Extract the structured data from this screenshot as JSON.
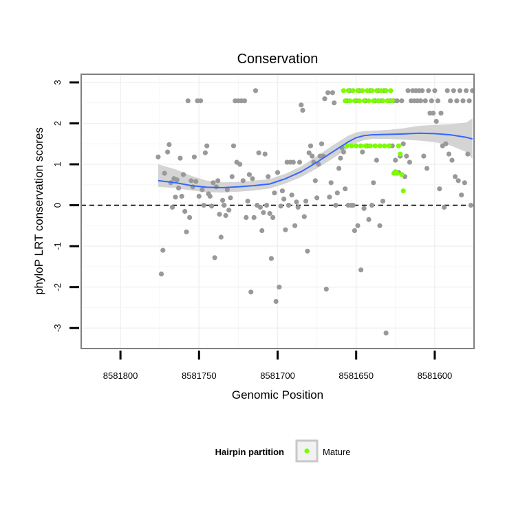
{
  "chart_data": {
    "type": "scatter",
    "title": "Conservation",
    "xlabel": "Genomic Position",
    "ylabel": "phyloP LRT conservation scores",
    "x_reversed": true,
    "xlim": [
      8581825,
      8581575
    ],
    "ylim": [
      -3.5,
      3.2
    ],
    "x_ticks": [
      8581800,
      8581750,
      8581700,
      8581650,
      8581600
    ],
    "x_tick_labels": [
      "8581800",
      "8581750",
      "8581700",
      "8581650",
      "8581600"
    ],
    "y_ticks": [
      -3,
      -2,
      -1,
      0,
      1,
      2,
      3
    ],
    "y_tick_labels": [
      "-3",
      "-2",
      "-1",
      "0",
      "1",
      "2",
      "3"
    ],
    "reference_line": {
      "y": 0,
      "style": "dashed"
    },
    "grid": true,
    "legend": {
      "title": "Hairpin partition",
      "position": "bottom",
      "entries": [
        {
          "label": "Mature",
          "color": "#7CFC00"
        }
      ]
    },
    "colors": {
      "points": "#999999",
      "mature": "#7CFC00",
      "smooth": "#3366FF",
      "band": "#cccccc"
    },
    "series": [
      {
        "name": "",
        "points": [
          [
            8581776,
            1.18
          ],
          [
            8581774,
            -1.68
          ],
          [
            8581773,
            -1.1
          ],
          [
            8581772,
            0.78
          ],
          [
            8581770,
            1.3
          ],
          [
            8581769,
            1.48
          ],
          [
            8581768,
            0.55
          ],
          [
            8581767,
            -0.05
          ],
          [
            8581766,
            0.65
          ],
          [
            8581765,
            0.2
          ],
          [
            8581764,
            0.62
          ],
          [
            8581763,
            0.42
          ],
          [
            8581762,
            1.15
          ],
          [
            8581761,
            0.22
          ],
          [
            8581760,
            0.75
          ],
          [
            8581759,
            -0.15
          ],
          [
            8581758,
            -0.65
          ],
          [
            8581757,
            2.55
          ],
          [
            8581756,
            -0.3
          ],
          [
            8581755,
            0.6
          ],
          [
            8581754,
            0.45
          ],
          [
            8581753,
            1.18
          ],
          [
            8581752,
            0.58
          ],
          [
            8581751,
            2.55
          ],
          [
            8581750,
            0.22
          ],
          [
            8581749,
            2.55
          ],
          [
            8581748,
            0.38
          ],
          [
            8581747,
            0.0
          ],
          [
            8581746,
            1.28
          ],
          [
            8581745,
            1.45
          ],
          [
            8581744,
            0.28
          ],
          [
            8581743,
            0.22
          ],
          [
            8581742,
            -0.02
          ],
          [
            8581741,
            0.55
          ],
          [
            8581740,
            -1.28
          ],
          [
            8581739,
            0.45
          ],
          [
            8581738,
            0.6
          ],
          [
            8581737,
            -0.22
          ],
          [
            8581736,
            -0.78
          ],
          [
            8581735,
            0.12
          ],
          [
            8581734,
            0.0
          ],
          [
            8581733,
            -0.25
          ],
          [
            8581732,
            0.38
          ],
          [
            8581731,
            -0.12
          ],
          [
            8581730,
            0.18
          ],
          [
            8581729,
            0.7
          ],
          [
            8581728,
            1.45
          ],
          [
            8581727,
            2.55
          ],
          [
            8581726,
            1.05
          ],
          [
            8581725,
            2.55
          ],
          [
            8581724,
            1.0
          ],
          [
            8581723,
            2.55
          ],
          [
            8581722,
            0.6
          ],
          [
            8581721,
            2.55
          ],
          [
            8581720,
            -0.3
          ],
          [
            8581719,
            0.1
          ],
          [
            8581718,
            0.75
          ],
          [
            8581717,
            -2.12
          ],
          [
            8581716,
            0.65
          ],
          [
            8581715,
            -0.3
          ],
          [
            8581714,
            2.8
          ],
          [
            8581713,
            0.0
          ],
          [
            8581712,
            1.28
          ],
          [
            8581711,
            -0.05
          ],
          [
            8581710,
            -0.62
          ],
          [
            8581709,
            -0.18
          ],
          [
            8581708,
            1.25
          ],
          [
            8581707,
            0.0
          ],
          [
            8581706,
            0.7
          ],
          [
            8581705,
            -0.2
          ],
          [
            8581704,
            -1.3
          ],
          [
            8581703,
            -0.3
          ],
          [
            8581702,
            0.3
          ],
          [
            8581701,
            -2.35
          ],
          [
            8581700,
            0.8
          ],
          [
            8581699,
            -2.0
          ],
          [
            8581698,
            -0.02
          ],
          [
            8581697,
            0.35
          ],
          [
            8581696,
            0.15
          ],
          [
            8581695,
            -0.6
          ],
          [
            8581694,
            1.05
          ],
          [
            8581693,
            0.0
          ],
          [
            8581692,
            1.05
          ],
          [
            8581691,
            0.25
          ],
          [
            8581690,
            1.05
          ],
          [
            8581689,
            -0.5
          ],
          [
            8581688,
            0.08
          ],
          [
            8581687,
            -0.05
          ],
          [
            8581686,
            1.05
          ],
          [
            8581685,
            2.45
          ],
          [
            8581684,
            2.32
          ],
          [
            8581683,
            -0.28
          ],
          [
            8581682,
            0.1
          ],
          [
            8581681,
            -1.12
          ],
          [
            8581680,
            1.28
          ],
          [
            8581679,
            1.45
          ],
          [
            8581678,
            1.2
          ],
          [
            8581677,
            1.05
          ],
          [
            8581676,
            0.6
          ],
          [
            8581675,
            0.18
          ],
          [
            8581674,
            1.0
          ],
          [
            8581673,
            1.2
          ],
          [
            8581672,
            1.5
          ],
          [
            8581671,
            1.2
          ],
          [
            8581670,
            2.6
          ],
          [
            8581669,
            -2.05
          ],
          [
            8581668,
            2.75
          ],
          [
            8581667,
            0.2
          ],
          [
            8581666,
            0.55
          ],
          [
            8581665,
            2.75
          ],
          [
            8581664,
            2.5
          ],
          [
            8581663,
            0.0
          ],
          [
            8581662,
            0.3
          ],
          [
            8581661,
            0.9
          ],
          [
            8581660,
            1.15
          ],
          [
            8581659,
            1.4
          ],
          [
            8581658,
            1.3
          ],
          [
            8581657,
            0.4
          ],
          [
            8581656,
            2.55
          ],
          [
            8581655,
            0.0
          ],
          [
            8581654,
            2.8
          ],
          [
            8581653,
            0.0
          ],
          [
            8581652,
            0.0
          ],
          [
            8581651,
            -0.62
          ],
          [
            8581650,
            2.55
          ],
          [
            8581649,
            -0.5
          ],
          [
            8581648,
            2.8
          ],
          [
            8581647,
            -1.58
          ],
          [
            8581646,
            1.3
          ],
          [
            8581645,
            -0.08
          ],
          [
            8581644,
            2.55
          ],
          [
            8581643,
            1.45
          ],
          [
            8581642,
            -0.35
          ],
          [
            8581641,
            2.8
          ],
          [
            8581640,
            0.0
          ],
          [
            8581639,
            0.55
          ],
          [
            8581638,
            2.55
          ],
          [
            8581637,
            1.1
          ],
          [
            8581636,
            2.8
          ],
          [
            8581635,
            -0.5
          ],
          [
            8581634,
            2.55
          ],
          [
            8581633,
            0.1
          ],
          [
            8581632,
            2.8
          ],
          [
            8581631,
            -3.12
          ],
          [
            8581630,
            2.55
          ],
          [
            8581629,
            1.45
          ],
          [
            8581628,
            2.55
          ],
          [
            8581627,
            1.45
          ],
          [
            8581626,
            2.55
          ],
          [
            8581625,
            1.1
          ],
          [
            8581624,
            2.55
          ],
          [
            8581623,
            0.8
          ],
          [
            8581622,
            1.2
          ],
          [
            8581621,
            2.55
          ],
          [
            8581620,
            1.5
          ],
          [
            8581619,
            0.7
          ],
          [
            8581618,
            1.2
          ],
          [
            8581617,
            2.8
          ],
          [
            8581616,
            1.05
          ],
          [
            8581615,
            2.55
          ],
          [
            8581614,
            2.8
          ],
          [
            8581613,
            2.55
          ],
          [
            8581612,
            2.8
          ],
          [
            8581611,
            2.55
          ],
          [
            8581610,
            2.8
          ],
          [
            8581609,
            2.55
          ],
          [
            8581608,
            2.8
          ],
          [
            8581607,
            1.2
          ],
          [
            8581606,
            2.55
          ],
          [
            8581605,
            0.9
          ],
          [
            8581604,
            2.8
          ],
          [
            8581603,
            2.25
          ],
          [
            8581602,
            2.55
          ],
          [
            8581601,
            2.25
          ],
          [
            8581600,
            2.8
          ],
          [
            8581599,
            2.05
          ],
          [
            8581598,
            2.55
          ],
          [
            8581597,
            0.4
          ],
          [
            8581596,
            2.25
          ],
          [
            8581595,
            1.45
          ],
          [
            8581594,
            -0.05
          ],
          [
            8581593,
            1.5
          ],
          [
            8581592,
            2.8
          ],
          [
            8581591,
            1.25
          ],
          [
            8581590,
            2.55
          ],
          [
            8581589,
            1.1
          ],
          [
            8581588,
            2.8
          ],
          [
            8581587,
            0.7
          ],
          [
            8581586,
            2.55
          ],
          [
            8581585,
            0.6
          ],
          [
            8581584,
            2.8
          ],
          [
            8581583,
            0.25
          ],
          [
            8581582,
            2.55
          ],
          [
            8581581,
            0.55
          ],
          [
            8581580,
            2.8
          ],
          [
            8581579,
            1.25
          ],
          [
            8581578,
            2.55
          ],
          [
            8581577,
            0.0
          ],
          [
            8581576,
            2.8
          ]
        ]
      },
      {
        "name": "Mature",
        "points": [
          [
            8581658,
            2.8
          ],
          [
            8581657,
            2.55
          ],
          [
            8581656,
            1.45
          ],
          [
            8581655,
            2.8
          ],
          [
            8581654,
            2.55
          ],
          [
            8581653,
            1.45
          ],
          [
            8581652,
            2.8
          ],
          [
            8581651,
            2.55
          ],
          [
            8581650,
            1.45
          ],
          [
            8581649,
            2.8
          ],
          [
            8581648,
            2.55
          ],
          [
            8581647,
            1.45
          ],
          [
            8581646,
            2.8
          ],
          [
            8581645,
            2.55
          ],
          [
            8581644,
            1.45
          ],
          [
            8581643,
            2.8
          ],
          [
            8581642,
            2.55
          ],
          [
            8581641,
            1.45
          ],
          [
            8581640,
            2.8
          ],
          [
            8581639,
            2.55
          ],
          [
            8581638,
            1.45
          ],
          [
            8581637,
            2.8
          ],
          [
            8581636,
            2.55
          ],
          [
            8581635,
            1.45
          ],
          [
            8581634,
            2.8
          ],
          [
            8581633,
            2.55
          ],
          [
            8581632,
            1.45
          ],
          [
            8581631,
            2.8
          ],
          [
            8581630,
            2.55
          ],
          [
            8581629,
            1.45
          ],
          [
            8581628,
            2.8
          ],
          [
            8581627,
            2.55
          ],
          [
            8581626,
            0.78
          ],
          [
            8581625,
            0.82
          ],
          [
            8581624,
            0.78
          ],
          [
            8581623,
            1.45
          ],
          [
            8581622,
            1.25
          ],
          [
            8581621,
            0.75
          ],
          [
            8581620,
            0.35
          ]
        ]
      }
    ],
    "smooth": {
      "x": [
        8581776,
        8581765,
        8581755,
        8581745,
        8581735,
        8581725,
        8581715,
        8581705,
        8581695,
        8581685,
        8581675,
        8581665,
        8581655,
        8581650,
        8581645,
        8581640,
        8581630,
        8581620,
        8581610,
        8581600,
        8581590,
        8581580,
        8581576
      ],
      "y": [
        0.6,
        0.55,
        0.48,
        0.44,
        0.43,
        0.45,
        0.48,
        0.52,
        0.65,
        0.82,
        1.05,
        1.3,
        1.55,
        1.65,
        1.7,
        1.72,
        1.73,
        1.74,
        1.76,
        1.75,
        1.72,
        1.66,
        1.62
      ],
      "lower": [
        0.45,
        0.42,
        0.36,
        0.32,
        0.31,
        0.33,
        0.36,
        0.41,
        0.53,
        0.69,
        0.9,
        1.14,
        1.4,
        1.52,
        1.59,
        1.62,
        1.62,
        1.6,
        1.58,
        1.54,
        1.46,
        1.3,
        1.13
      ],
      "upper": [
        1.0,
        0.88,
        0.72,
        0.6,
        0.56,
        0.57,
        0.6,
        0.64,
        0.77,
        0.95,
        1.2,
        1.46,
        1.7,
        1.78,
        1.81,
        1.82,
        1.84,
        1.88,
        1.94,
        1.96,
        1.98,
        2.02,
        2.12
      ]
    }
  }
}
